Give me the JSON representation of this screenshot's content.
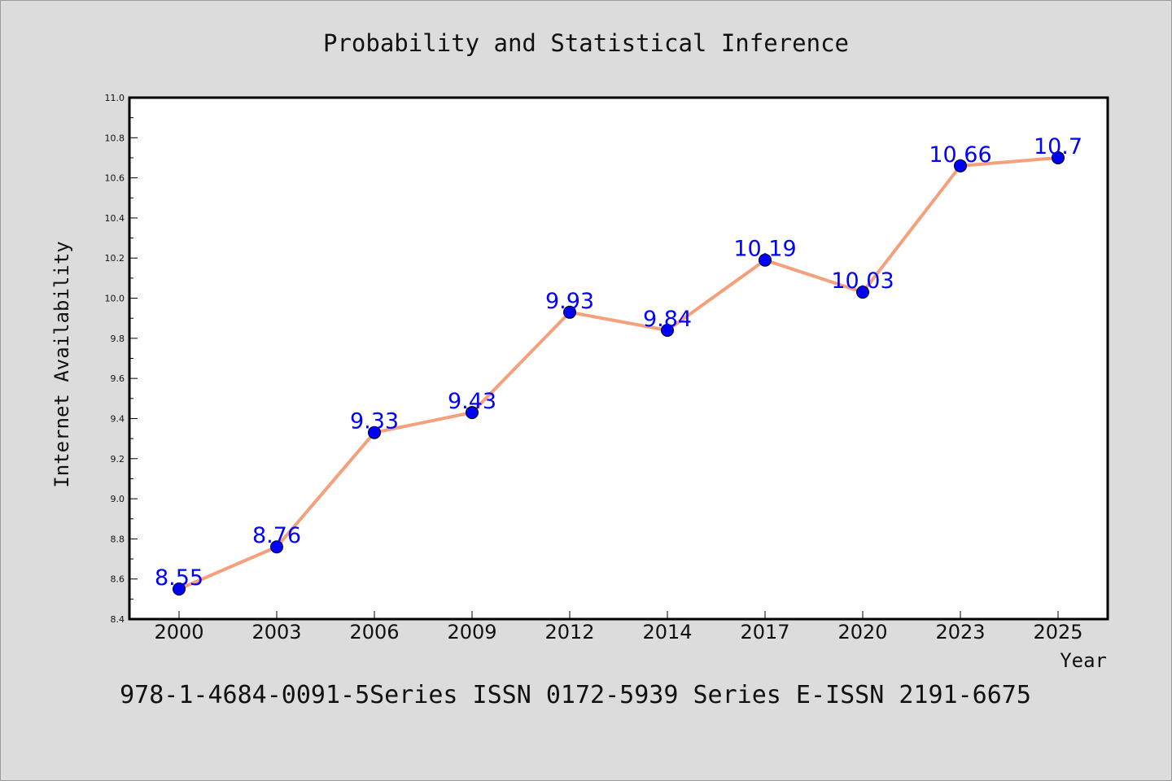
{
  "chart_data": {
    "type": "line",
    "title": "Probability and Statistical Inference",
    "xlabel": "Year",
    "ylabel": "Internet Availability",
    "categories": [
      "2000",
      "2003",
      "2006",
      "2009",
      "2012",
      "2014",
      "2017",
      "2020",
      "2023",
      "2025"
    ],
    "series": [
      {
        "values": [
          8.55,
          8.76,
          9.33,
          9.43,
          9.93,
          9.84,
          10.19,
          10.03,
          10.66,
          10.7
        ],
        "line_color": "#f4a07c",
        "marker_color": "#0000ff"
      }
    ],
    "data_labels": [
      "8.55",
      "8.76",
      "9.33",
      "9.43",
      "9.93",
      "9.84",
      "10.19",
      "10.03",
      "10.66",
      "10.7"
    ],
    "ylim": [
      8.4,
      11.0
    ],
    "yticks": [
      "8.4",
      "8.6",
      "8.8",
      "9.0",
      "9.2",
      "9.4",
      "9.6",
      "9.8",
      "10.0",
      "10.2",
      "10.4",
      "10.6",
      "10.8",
      "11.0"
    ],
    "grid": false,
    "legend": "none"
  },
  "footer": "978-1-4684-0091-5Series ISSN 0172-5939 Series E-ISSN 2191-6675",
  "colors": {
    "background": "#dcdcdc",
    "plot_area": "#ffffff",
    "line": "#f4a07c",
    "marker": "#0000ff",
    "data_label": "#0000ff"
  }
}
